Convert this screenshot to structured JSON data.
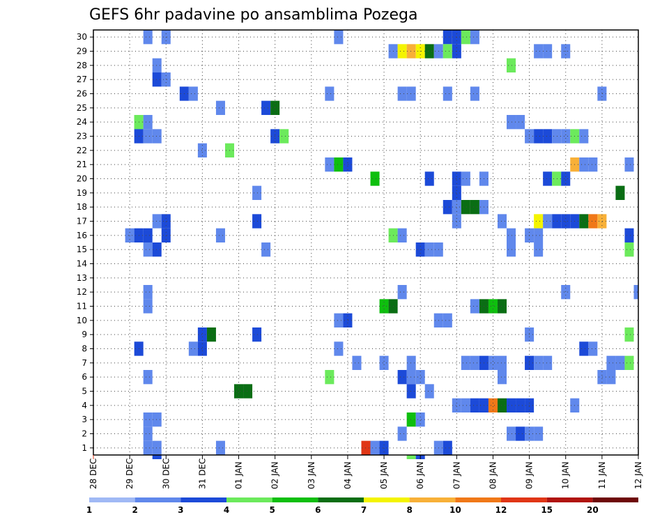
{
  "chart_data": {
    "type": "heatmap",
    "title": "GEFS 6hr padavine po ansamblima Pozega",
    "xlabel": "",
    "ylabel": "",
    "x_ticks": [
      "28 DEC",
      "29 DEC",
      "30 DEC",
      "31 DEC",
      "01 JAN",
      "02 JAN",
      "03 JAN",
      "04 JAN",
      "05 JAN",
      "06 JAN",
      "07 JAN",
      "08 JAN",
      "09 JAN",
      "10 JAN",
      "11 JAN",
      "12 JAN"
    ],
    "y_ticks": [
      1,
      2,
      3,
      4,
      5,
      6,
      7,
      8,
      9,
      10,
      11,
      12,
      13,
      14,
      15,
      16,
      17,
      18,
      19,
      20,
      21,
      22,
      23,
      24,
      25,
      26,
      27,
      28,
      29,
      30
    ],
    "x_unit": "6-hour step from 28 DEC 00Z",
    "xlim": [
      0,
      60
    ],
    "ylim": [
      0.5,
      30.5
    ],
    "grid": true,
    "legend": "bottom colorbar",
    "levels": [
      1,
      2,
      3,
      4,
      5,
      6,
      7,
      8,
      10,
      12,
      15,
      20
    ],
    "level_labels": [
      "1",
      "2",
      "3",
      "4",
      "5",
      "6",
      "7",
      "8",
      "10",
      "12",
      "15",
      "20"
    ],
    "colors": [
      "#a0b9f5",
      "#6088ec",
      "#1c4ad8",
      "#6cea5c",
      "#0ebf0e",
      "#0a6e14",
      "#f4f400",
      "#f8b038",
      "#f07818",
      "#e03616",
      "#b0140e",
      "#6e0808"
    ],
    "cells": [
      [
        6,
        30,
        1
      ],
      [
        8,
        30,
        1
      ],
      [
        27,
        30,
        1
      ],
      [
        39,
        30,
        2
      ],
      [
        40,
        30,
        2
      ],
      [
        41,
        30,
        3
      ],
      [
        42,
        30,
        1
      ],
      [
        33,
        29,
        1
      ],
      [
        34,
        29,
        6
      ],
      [
        35,
        29,
        7
      ],
      [
        36,
        29,
        6
      ],
      [
        37,
        29,
        5
      ],
      [
        38,
        29,
        1
      ],
      [
        39,
        29,
        3
      ],
      [
        40,
        29,
        2
      ],
      [
        49,
        29,
        1
      ],
      [
        50,
        29,
        1
      ],
      [
        52,
        29,
        1
      ],
      [
        7,
        28,
        1
      ],
      [
        46,
        28,
        3
      ],
      [
        7,
        27,
        2
      ],
      [
        8,
        27,
        1
      ],
      [
        10,
        26,
        2
      ],
      [
        11,
        26,
        1
      ],
      [
        26,
        26,
        1
      ],
      [
        34,
        26,
        1
      ],
      [
        35,
        26,
        1
      ],
      [
        39,
        26,
        1
      ],
      [
        42,
        26,
        1
      ],
      [
        56,
        26,
        1
      ],
      [
        14,
        25,
        1
      ],
      [
        19,
        25,
        2
      ],
      [
        20,
        25,
        5
      ],
      [
        5,
        24,
        3
      ],
      [
        5,
        24,
        3
      ],
      [
        6,
        24,
        1
      ],
      [
        46,
        24,
        1
      ],
      [
        47,
        24,
        1
      ],
      [
        5,
        23,
        2
      ],
      [
        6,
        23,
        1
      ],
      [
        7,
        23,
        1
      ],
      [
        20,
        23,
        2
      ],
      [
        21,
        23,
        3
      ],
      [
        48,
        23,
        1
      ],
      [
        49,
        23,
        2
      ],
      [
        50,
        23,
        2
      ],
      [
        51,
        23,
        1
      ],
      [
        52,
        23,
        1
      ],
      [
        53,
        23,
        3
      ],
      [
        54,
        23,
        1
      ],
      [
        12,
        22,
        1
      ],
      [
        15,
        22,
        3
      ],
      [
        26,
        21,
        1
      ],
      [
        27,
        21,
        4
      ],
      [
        28,
        21,
        2
      ],
      [
        53,
        21,
        7
      ],
      [
        54,
        21,
        1
      ],
      [
        55,
        21,
        1
      ],
      [
        59,
        21,
        1
      ],
      [
        31,
        20,
        4
      ],
      [
        37,
        20,
        2
      ],
      [
        40,
        20,
        2
      ],
      [
        41,
        20,
        1
      ],
      [
        43,
        20,
        1
      ],
      [
        50,
        20,
        2
      ],
      [
        51,
        20,
        3
      ],
      [
        52,
        20,
        2
      ],
      [
        18,
        19,
        1
      ],
      [
        40,
        19,
        2
      ],
      [
        58,
        19,
        5
      ],
      [
        39,
        18,
        2
      ],
      [
        40,
        18,
        1
      ],
      [
        41,
        18,
        5
      ],
      [
        42,
        18,
        5
      ],
      [
        43,
        18,
        1
      ],
      [
        7,
        17,
        1
      ],
      [
        8,
        17,
        2
      ],
      [
        18,
        17,
        2
      ],
      [
        40,
        17,
        1
      ],
      [
        45,
        17,
        1
      ],
      [
        49,
        17,
        6
      ],
      [
        50,
        17,
        1
      ],
      [
        51,
        17,
        2
      ],
      [
        52,
        17,
        2
      ],
      [
        53,
        17,
        2
      ],
      [
        54,
        17,
        5
      ],
      [
        55,
        17,
        8
      ],
      [
        56,
        17,
        7
      ],
      [
        4,
        16,
        1
      ],
      [
        5,
        16,
        2
      ],
      [
        6,
        16,
        2
      ],
      [
        8,
        16,
        2
      ],
      [
        14,
        16,
        1
      ],
      [
        33,
        16,
        3
      ],
      [
        34,
        16,
        1
      ],
      [
        46,
        16,
        1
      ],
      [
        48,
        16,
        1
      ],
      [
        49,
        16,
        1
      ],
      [
        59,
        16,
        2
      ],
      [
        6,
        15,
        1
      ],
      [
        7,
        15,
        2
      ],
      [
        19,
        15,
        1
      ],
      [
        36,
        15,
        2
      ],
      [
        37,
        15,
        1
      ],
      [
        38,
        15,
        1
      ],
      [
        46,
        15,
        1
      ],
      [
        49,
        15,
        1
      ],
      [
        59,
        15,
        3
      ],
      [
        6,
        12,
        1
      ],
      [
        34,
        12,
        1
      ],
      [
        52,
        12,
        1
      ],
      [
        60,
        12,
        1
      ],
      [
        6,
        11,
        1
      ],
      [
        32,
        11,
        4
      ],
      [
        33,
        11,
        5
      ],
      [
        42,
        11,
        1
      ],
      [
        43,
        11,
        5
      ],
      [
        44,
        11,
        4
      ],
      [
        45,
        11,
        5
      ],
      [
        27,
        10,
        1
      ],
      [
        28,
        10,
        2
      ],
      [
        38,
        10,
        1
      ],
      [
        39,
        10,
        1
      ],
      [
        12,
        9,
        2
      ],
      [
        13,
        9,
        5
      ],
      [
        18,
        9,
        2
      ],
      [
        48,
        9,
        1
      ],
      [
        59,
        9,
        3
      ],
      [
        5,
        8,
        2
      ],
      [
        11,
        8,
        1
      ],
      [
        12,
        8,
        2
      ],
      [
        27,
        8,
        1
      ],
      [
        54,
        8,
        2
      ],
      [
        55,
        8,
        1
      ],
      [
        29,
        7,
        1
      ],
      [
        32,
        7,
        1
      ],
      [
        35,
        7,
        1
      ],
      [
        41,
        7,
        1
      ],
      [
        42,
        7,
        1
      ],
      [
        43,
        7,
        2
      ],
      [
        44,
        7,
        1
      ],
      [
        45,
        7,
        1
      ],
      [
        48,
        7,
        2
      ],
      [
        49,
        7,
        1
      ],
      [
        50,
        7,
        1
      ],
      [
        57,
        7,
        1
      ],
      [
        58,
        7,
        1
      ],
      [
        59,
        7,
        3
      ],
      [
        6,
        6,
        1
      ],
      [
        26,
        6,
        3
      ],
      [
        34,
        6,
        2
      ],
      [
        35,
        6,
        1
      ],
      [
        36,
        6,
        1
      ],
      [
        45,
        6,
        1
      ],
      [
        56,
        6,
        1
      ],
      [
        57,
        6,
        1
      ],
      [
        16,
        5,
        5
      ],
      [
        17,
        5,
        5
      ],
      [
        35,
        5,
        2
      ],
      [
        37,
        5,
        1
      ],
      [
        40,
        4,
        1
      ],
      [
        41,
        4,
        1
      ],
      [
        42,
        4,
        2
      ],
      [
        43,
        4,
        2
      ],
      [
        44,
        4,
        8
      ],
      [
        45,
        4,
        5
      ],
      [
        46,
        4,
        2
      ],
      [
        47,
        4,
        2
      ],
      [
        48,
        4,
        2
      ],
      [
        53,
        4,
        1
      ],
      [
        6,
        3,
        1
      ],
      [
        7,
        3,
        1
      ],
      [
        35,
        3,
        4
      ],
      [
        36,
        3,
        1
      ],
      [
        6,
        2,
        1
      ],
      [
        34,
        2,
        1
      ],
      [
        46,
        2,
        1
      ],
      [
        47,
        2,
        2
      ],
      [
        48,
        2,
        1
      ],
      [
        49,
        2,
        1
      ],
      [
        6,
        1,
        1
      ],
      [
        7,
        1,
        1
      ],
      [
        14,
        1,
        1
      ],
      [
        30,
        1,
        9
      ],
      [
        31,
        1,
        1
      ],
      [
        32,
        1,
        2
      ],
      [
        38,
        1,
        1
      ],
      [
        39,
        1,
        2
      ],
      [
        7,
        0,
        2
      ],
      [
        35,
        0,
        3
      ],
      [
        36,
        0,
        2
      ]
    ]
  }
}
